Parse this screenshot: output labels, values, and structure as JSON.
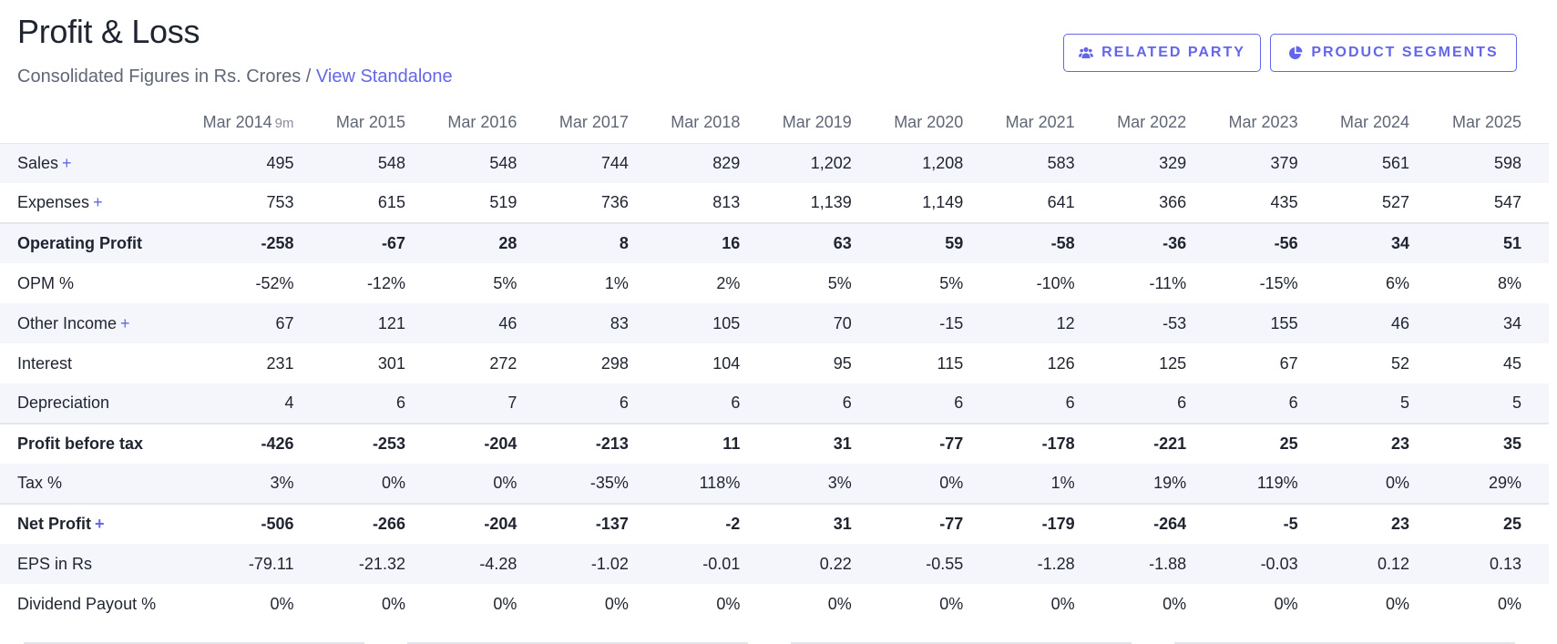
{
  "header": {
    "title": "Profit & Loss",
    "subtitle_text": "Consolidated Figures in Rs. Crores / ",
    "subtitle_link": "View Standalone"
  },
  "buttons": {
    "related_party": {
      "label": "RELATED PARTY",
      "icon": "users-icon"
    },
    "product_segments": {
      "label": "PRODUCT SEGMENTS",
      "icon": "pie-chart-icon"
    }
  },
  "columns": [
    {
      "label": "Mar 2014",
      "sub": "9m"
    },
    {
      "label": "Mar 2015",
      "sub": ""
    },
    {
      "label": "Mar 2016",
      "sub": ""
    },
    {
      "label": "Mar 2017",
      "sub": ""
    },
    {
      "label": "Mar 2018",
      "sub": ""
    },
    {
      "label": "Mar 2019",
      "sub": ""
    },
    {
      "label": "Mar 2020",
      "sub": ""
    },
    {
      "label": "Mar 2021",
      "sub": ""
    },
    {
      "label": "Mar 2022",
      "sub": ""
    },
    {
      "label": "Mar 2023",
      "sub": ""
    },
    {
      "label": "Mar 2024",
      "sub": ""
    },
    {
      "label": "Mar 2025",
      "sub": ""
    }
  ],
  "rows": [
    {
      "name": "sales",
      "label": "Sales",
      "expandable": true,
      "bold": false,
      "sep": false,
      "values": [
        "495",
        "548",
        "548",
        "744",
        "829",
        "1,202",
        "1,208",
        "583",
        "329",
        "379",
        "561",
        "598"
      ]
    },
    {
      "name": "expenses",
      "label": "Expenses",
      "expandable": true,
      "bold": false,
      "sep": false,
      "values": [
        "753",
        "615",
        "519",
        "736",
        "813",
        "1,139",
        "1,149",
        "641",
        "366",
        "435",
        "527",
        "547"
      ]
    },
    {
      "name": "operating-profit",
      "label": "Operating Profit",
      "expandable": false,
      "bold": true,
      "sep": true,
      "values": [
        "-258",
        "-67",
        "28",
        "8",
        "16",
        "63",
        "59",
        "-58",
        "-36",
        "-56",
        "34",
        "51"
      ]
    },
    {
      "name": "opm-percent",
      "label": "OPM %",
      "expandable": false,
      "bold": false,
      "sep": false,
      "values": [
        "-52%",
        "-12%",
        "5%",
        "1%",
        "2%",
        "5%",
        "5%",
        "-10%",
        "-11%",
        "-15%",
        "6%",
        "8%"
      ]
    },
    {
      "name": "other-income",
      "label": "Other Income",
      "expandable": true,
      "bold": false,
      "sep": false,
      "values": [
        "67",
        "121",
        "46",
        "83",
        "105",
        "70",
        "-15",
        "12",
        "-53",
        "155",
        "46",
        "34"
      ]
    },
    {
      "name": "interest",
      "label": "Interest",
      "expandable": false,
      "bold": false,
      "sep": false,
      "values": [
        "231",
        "301",
        "272",
        "298",
        "104",
        "95",
        "115",
        "126",
        "125",
        "67",
        "52",
        "45"
      ]
    },
    {
      "name": "depreciation",
      "label": "Depreciation",
      "expandable": false,
      "bold": false,
      "sep": false,
      "values": [
        "4",
        "6",
        "7",
        "6",
        "6",
        "6",
        "6",
        "6",
        "6",
        "6",
        "5",
        "5"
      ]
    },
    {
      "name": "profit-before-tax",
      "label": "Profit before tax",
      "expandable": false,
      "bold": true,
      "sep": true,
      "values": [
        "-426",
        "-253",
        "-204",
        "-213",
        "11",
        "31",
        "-77",
        "-178",
        "-221",
        "25",
        "23",
        "35"
      ]
    },
    {
      "name": "tax-percent",
      "label": "Tax %",
      "expandable": false,
      "bold": false,
      "sep": false,
      "values": [
        "3%",
        "0%",
        "0%",
        "-35%",
        "118%",
        "3%",
        "0%",
        "1%",
        "19%",
        "119%",
        "0%",
        "29%"
      ]
    },
    {
      "name": "net-profit",
      "label": "Net Profit",
      "expandable": true,
      "bold": true,
      "sep": true,
      "values": [
        "-506",
        "-266",
        "-204",
        "-137",
        "-2",
        "31",
        "-77",
        "-179",
        "-264",
        "-5",
        "23",
        "25"
      ]
    },
    {
      "name": "eps",
      "label": "EPS in Rs",
      "expandable": false,
      "bold": false,
      "sep": false,
      "values": [
        "-79.11",
        "-21.32",
        "-4.28",
        "-1.02",
        "-0.01",
        "0.22",
        "-0.55",
        "-1.28",
        "-1.88",
        "-0.03",
        "0.12",
        "0.13"
      ]
    },
    {
      "name": "dividend-payout",
      "label": "Dividend Payout %",
      "expandable": false,
      "bold": false,
      "sep": false,
      "values": [
        "0%",
        "0%",
        "0%",
        "0%",
        "0%",
        "0%",
        "0%",
        "0%",
        "0%",
        "0%",
        "0%",
        "0%"
      ]
    }
  ],
  "plus_symbol": "+",
  "colors": {
    "accent": "#6366e8",
    "text": "#1f2430",
    "muted": "#5f6675",
    "stripe": "#f5f6fb"
  }
}
